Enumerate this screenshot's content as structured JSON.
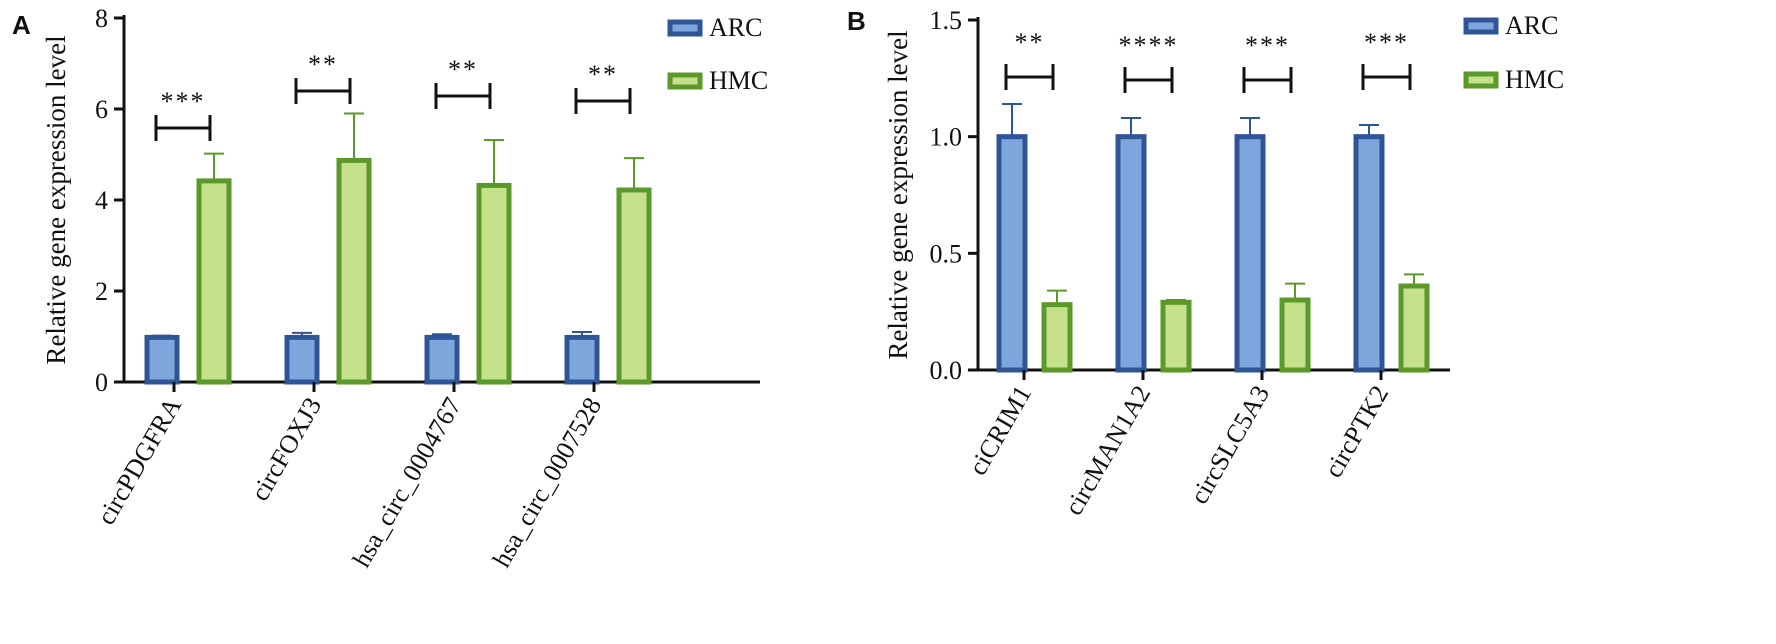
{
  "colors": {
    "arc_fill": "#7ea6dc",
    "arc_stroke": "#2f5597",
    "hmc_fill": "#c5e08a",
    "hmc_stroke": "#5b9a2a",
    "axis": "#111111"
  },
  "chart_data": [
    {
      "panel_label": "A",
      "type": "bar",
      "title": "",
      "xlabel": "",
      "ylabel": "Relative gene expression level",
      "ylim": [
        0,
        8
      ],
      "yticks": [
        0,
        2,
        4,
        6,
        8
      ],
      "ytick_labels": [
        "0",
        "2",
        "4",
        "6",
        "8"
      ],
      "categories": [
        "circPDGFRA",
        "circFOXJ3",
        "hsa_circ_0004767",
        "hsa_circ_0007528"
      ],
      "series": [
        {
          "name": "ARC",
          "values": [
            0.98,
            0.98,
            0.98,
            0.98
          ],
          "error": [
            0.04,
            0.1,
            0.07,
            0.12
          ]
        },
        {
          "name": "HMC",
          "values": [
            4.42,
            4.87,
            4.32,
            4.22
          ],
          "error": [
            0.6,
            1.03,
            1.0,
            0.7
          ]
        }
      ],
      "significance": [
        "***",
        "**",
        "**",
        "**"
      ],
      "legend": {
        "position": "top-right",
        "entries": [
          "ARC",
          "HMC"
        ]
      },
      "grid": false
    },
    {
      "panel_label": "B",
      "type": "bar",
      "title": "",
      "xlabel": "",
      "ylabel": "Relative gene expression level",
      "ylim": [
        0,
        1.5
      ],
      "yticks": [
        0,
        0.5,
        1.0,
        1.5
      ],
      "ytick_labels": [
        "0.0",
        "0.5",
        "1.0",
        "1.5"
      ],
      "categories": [
        "ciCRIM1",
        "circMAN1A2",
        "circSLC5A3",
        "circPTK2"
      ],
      "series": [
        {
          "name": "ARC",
          "values": [
            1.0,
            1.0,
            1.0,
            1.0
          ],
          "error": [
            0.14,
            0.08,
            0.08,
            0.05
          ]
        },
        {
          "name": "HMC",
          "values": [
            0.28,
            0.29,
            0.3,
            0.36
          ],
          "error": [
            0.06,
            0.01,
            0.07,
            0.05
          ]
        }
      ],
      "significance": [
        "**",
        "****",
        "***",
        "***"
      ],
      "legend": {
        "position": "top-right",
        "entries": [
          "ARC",
          "HMC"
        ]
      },
      "grid": false
    }
  ]
}
